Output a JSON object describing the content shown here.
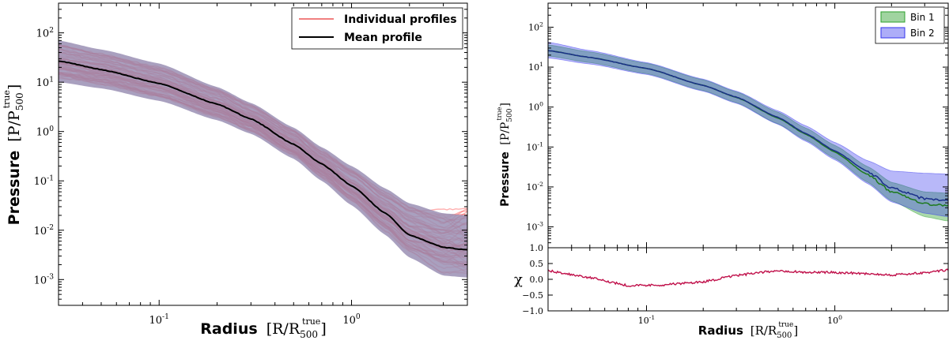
{
  "chart_data": [
    {
      "type": "line",
      "title": "",
      "xlabel": "Radius",
      "xlabel_unit": "[R/R",
      "xlabel_sub": "500",
      "xlabel_sup": "true",
      "xlabel_close": "]",
      "ylabel": "Pressure",
      "ylabel_unit": "[P/P",
      "ylabel_sub": "500",
      "ylabel_sup": "true",
      "ylabel_close": "]",
      "xscale": "log",
      "yscale": "log",
      "xlim": [
        0.03,
        4.0
      ],
      "ylim": [
        0.0003,
        400
      ],
      "x_ticks": [
        {
          "value": 0.1,
          "base": "10",
          "exp": "-1"
        },
        {
          "value": 1,
          "base": "10",
          "exp": "0"
        }
      ],
      "y_ticks": [
        {
          "value": 0.001,
          "base": "10",
          "exp": "-3"
        },
        {
          "value": 0.01,
          "base": "10",
          "exp": "-2"
        },
        {
          "value": 0.1,
          "base": "10",
          "exp": "-1"
        },
        {
          "value": 1,
          "base": "10",
          "exp": "0"
        },
        {
          "value": 10,
          "base": "10",
          "exp": "1"
        },
        {
          "value": 100,
          "base": "10",
          "exp": "2"
        }
      ],
      "legend": {
        "position": "top-right",
        "entries": [
          "Individual profiles",
          "Mean profile"
        ]
      },
      "series": [
        {
          "name": "Mean profile",
          "color": "#000000",
          "x": [
            0.03,
            0.05,
            0.1,
            0.2,
            0.3,
            0.5,
            0.7,
            1.0,
            1.5,
            2.0,
            3.0,
            4.0
          ],
          "values": [
            27,
            18,
            9.5,
            3.6,
            1.8,
            0.55,
            0.22,
            0.08,
            0.022,
            0.008,
            0.0045,
            0.004
          ]
        },
        {
          "name": "Mean profile band",
          "color": "#9a8fb4",
          "x": [
            0.03,
            0.05,
            0.1,
            0.2,
            0.3,
            0.5,
            0.7,
            1.0,
            1.5,
            2.0,
            3.0,
            4.0
          ],
          "upper": [
            70,
            46,
            24,
            8.0,
            3.8,
            1.2,
            0.48,
            0.2,
            0.07,
            0.035,
            0.022,
            0.02
          ],
          "lower": [
            10,
            7.5,
            4.2,
            1.7,
            0.9,
            0.28,
            0.1,
            0.032,
            0.008,
            0.0028,
            0.0012,
            0.0011
          ]
        }
      ]
    },
    {
      "type": "line",
      "title": "",
      "xlabel": "Radius",
      "xlabel_unit": "[R/R",
      "xlabel_sub": "500",
      "xlabel_sup": "true",
      "xlabel_close": "]",
      "ylabel": "Pressure",
      "ylabel_unit": "[P/P",
      "ylabel_sub": "500",
      "ylabel_sup": "true",
      "ylabel_close": "]",
      "xscale": "log",
      "yscale": "log",
      "xlim": [
        0.03,
        4.0
      ],
      "ylim": [
        0.0003,
        400
      ],
      "x_ticks": [
        {
          "value": 0.1,
          "base": "10",
          "exp": "-1"
        },
        {
          "value": 1,
          "base": "10",
          "exp": "0"
        }
      ],
      "y_ticks": [
        {
          "value": 0.001,
          "base": "10",
          "exp": "-3"
        },
        {
          "value": 0.01,
          "base": "10",
          "exp": "-2"
        },
        {
          "value": 0.1,
          "base": "10",
          "exp": "-1"
        },
        {
          "value": 1,
          "base": "10",
          "exp": "0"
        },
        {
          "value": 10,
          "base": "10",
          "exp": "1"
        },
        {
          "value": 100,
          "base": "10",
          "exp": "2"
        }
      ],
      "legend": {
        "position": "top-right",
        "entries": [
          "Bin 1",
          "Bin 2"
        ]
      },
      "series": [
        {
          "name": "Bin 1",
          "color": "#2ca02c",
          "x": [
            0.03,
            0.05,
            0.1,
            0.2,
            0.3,
            0.5,
            0.7,
            1.0,
            1.5,
            2.0,
            3.0,
            4.0
          ],
          "values": [
            26,
            17.5,
            9.3,
            3.5,
            1.75,
            0.53,
            0.21,
            0.075,
            0.02,
            0.0075,
            0.0038,
            0.0033
          ],
          "upper": [
            36,
            24,
            12.5,
            4.8,
            2.4,
            0.74,
            0.3,
            0.11,
            0.032,
            0.013,
            0.0075,
            0.007
          ],
          "lower": [
            19,
            13,
            6.9,
            2.6,
            1.3,
            0.38,
            0.15,
            0.052,
            0.013,
            0.0045,
            0.0018,
            0.0014
          ]
        },
        {
          "name": "Bin 2",
          "color": "#1f3fa8",
          "x": [
            0.03,
            0.05,
            0.1,
            0.2,
            0.3,
            0.5,
            0.7,
            1.0,
            1.5,
            2.0,
            3.0,
            4.0
          ],
          "values": [
            26,
            17.5,
            9.3,
            3.5,
            1.78,
            0.55,
            0.22,
            0.08,
            0.024,
            0.0095,
            0.005,
            0.0045
          ],
          "upper": [
            42,
            26,
            13,
            5.0,
            2.5,
            0.8,
            0.34,
            0.13,
            0.045,
            0.025,
            0.022,
            0.021
          ],
          "lower": [
            17,
            12,
            6.6,
            2.5,
            1.25,
            0.37,
            0.14,
            0.048,
            0.012,
            0.0042,
            0.0022,
            0.0018
          ]
        }
      ]
    },
    {
      "type": "line",
      "xlabel": "Radius",
      "ylabel": "χ",
      "xscale": "log",
      "xlim": [
        0.03,
        4.0
      ],
      "ylim": [
        -1.0,
        1.0
      ],
      "y_ticks": [
        {
          "value": -1.0,
          "label": "−1.0"
        },
        {
          "value": -0.5,
          "label": "−0.5"
        },
        {
          "value": 0.0,
          "label": "0.0"
        },
        {
          "value": 0.5,
          "label": "0.5"
        },
        {
          "value": 1.0,
          "label": "1.0"
        }
      ],
      "series": [
        {
          "name": "chi",
          "color": "#c0104a",
          "x": [
            0.03,
            0.05,
            0.08,
            0.12,
            0.2,
            0.3,
            0.5,
            0.7,
            1.0,
            1.5,
            2.0,
            3.0,
            4.0
          ],
          "values": [
            0.28,
            0.05,
            -0.2,
            -0.18,
            -0.08,
            0.12,
            0.28,
            0.22,
            0.22,
            0.18,
            0.14,
            0.2,
            0.3
          ]
        }
      ]
    }
  ]
}
